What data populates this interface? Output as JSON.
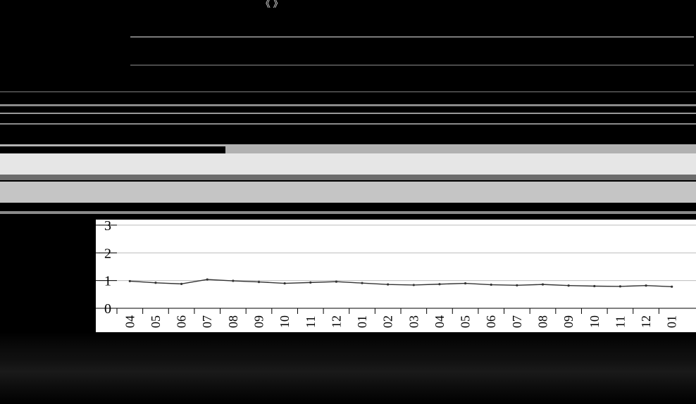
{
  "window": {
    "title_glyphs": "《 》 "
  },
  "chart_data": {
    "type": "line",
    "title": "",
    "xlabel": "",
    "ylabel": "",
    "y_ticks": [
      "0",
      "1",
      "2",
      "3"
    ],
    "ylim": [
      0,
      3.2
    ],
    "categories": [
      "04",
      "05",
      "06",
      "07",
      "08",
      "09",
      "10",
      "11",
      "12",
      "01",
      "02",
      "03",
      "04",
      "05",
      "06",
      "07",
      "08",
      "09",
      "10",
      "11",
      "12",
      "01"
    ],
    "series": [
      {
        "values": [
          0.98,
          0.92,
          0.88,
          1.04,
          0.99,
          0.95,
          0.9,
          0.93,
          0.96,
          0.91,
          0.86,
          0.84,
          0.87,
          0.9,
          0.85,
          0.83,
          0.86,
          0.82,
          0.8,
          0.79,
          0.82,
          0.78
        ]
      }
    ],
    "grid": true,
    "legend": "none"
  },
  "colors": {
    "background": "#000000",
    "plot_bg": "#ffffff",
    "line": "#333333",
    "grid": "#bbbbbb"
  }
}
